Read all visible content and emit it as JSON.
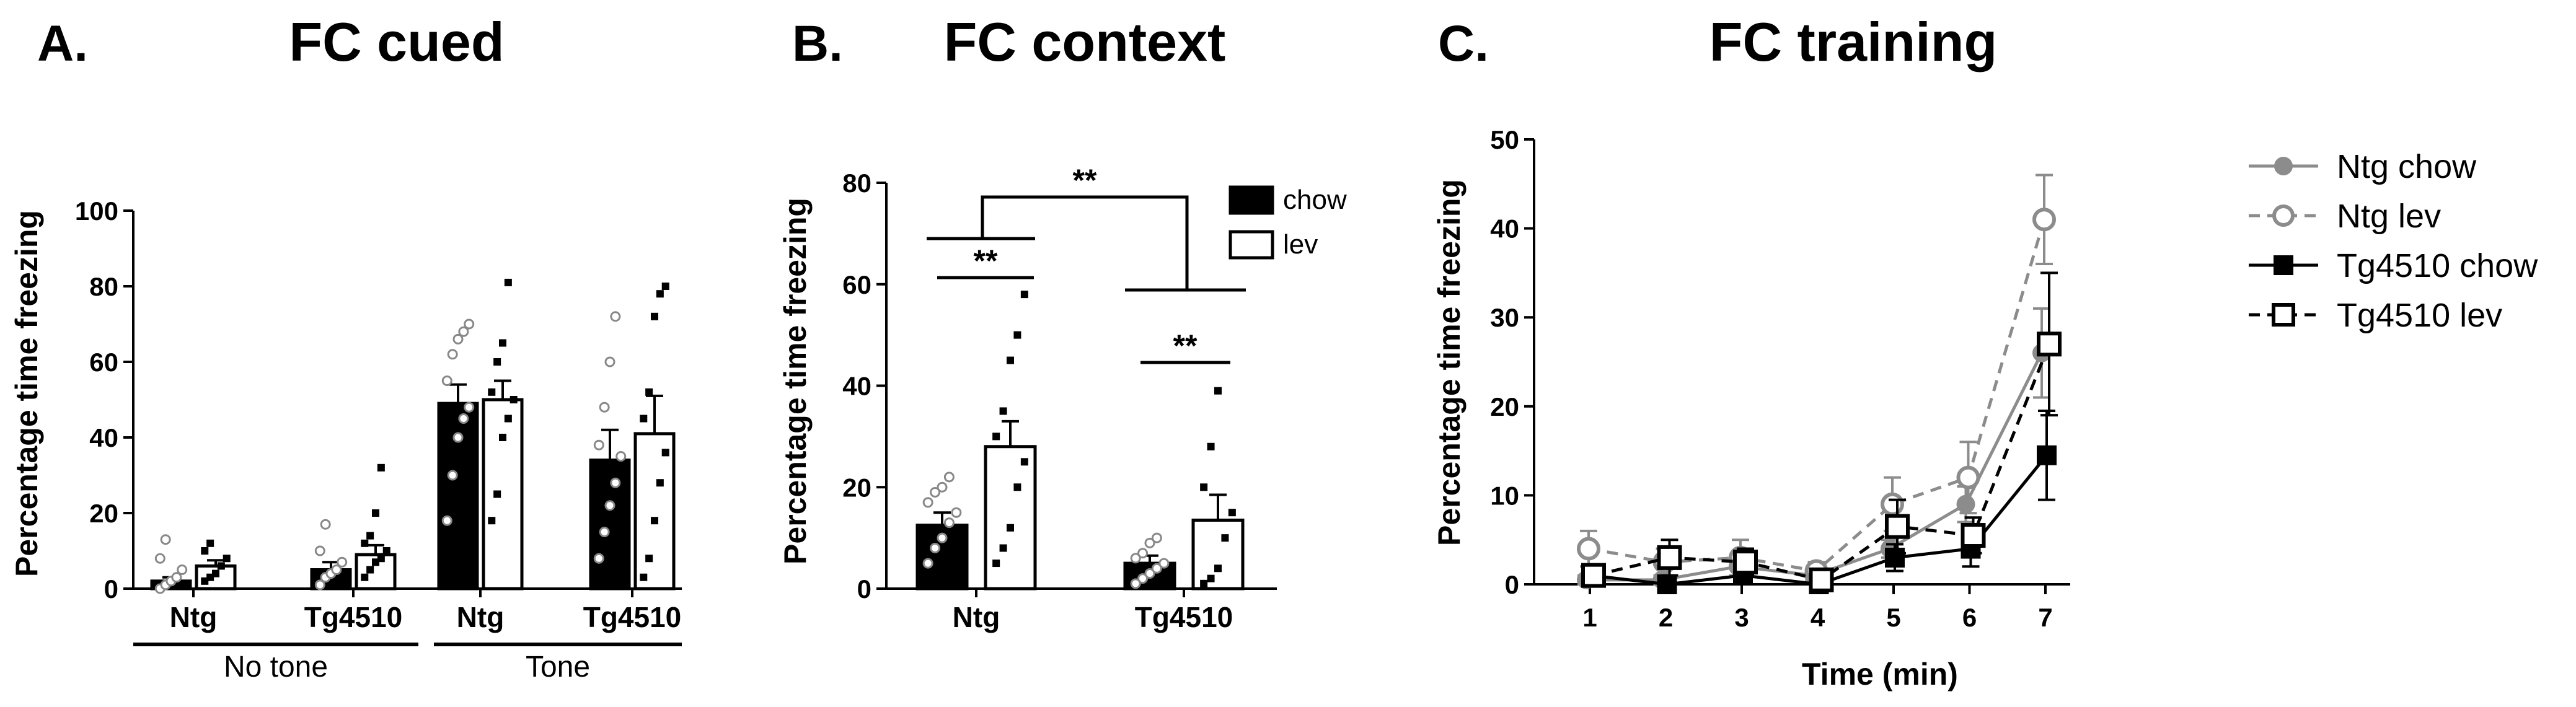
{
  "panels": {
    "a": {
      "letter": "A.",
      "title": "FC cued"
    },
    "b": {
      "letter": "B.",
      "title": "FC context"
    },
    "c": {
      "letter": "C.",
      "title": "FC training"
    }
  },
  "chart_data": [
    {
      "id": "a",
      "type": "bar",
      "title": "FC cued",
      "ylabel": "Percentage time freezing",
      "xlabel": "",
      "ylim": [
        0,
        100
      ],
      "yticks": [
        0,
        20,
        40,
        60,
        80,
        100
      ],
      "categories": [
        "Ntg",
        "Tg4510",
        "Ntg",
        "Tg4510"
      ],
      "groups": [
        {
          "label": "No tone",
          "categories": [
            0,
            1
          ]
        },
        {
          "label": "Tone",
          "categories": [
            2,
            3
          ]
        }
      ],
      "series": [
        {
          "id": "chow",
          "fill": "#000000",
          "values": [
            2,
            5,
            49,
            34
          ],
          "sem": [
            1,
            2,
            5,
            8
          ],
          "points": [
            [
              0,
              1,
              2,
              3,
              5,
              8,
              13
            ],
            [
              1,
              3,
              4,
              5,
              7,
              10,
              17
            ],
            [
              18,
              30,
              40,
              45,
              48,
              55,
              62,
              66,
              68,
              70
            ],
            [
              8,
              15,
              22,
              28,
              35,
              38,
              48,
              60,
              72
            ]
          ]
        },
        {
          "id": "lev",
          "fill": "#ffffff",
          "values": [
            6,
            9,
            50,
            41
          ],
          "sem": [
            1.5,
            2.5,
            5,
            10
          ],
          "points": [
            [
              2,
              3,
              4,
              6,
              8,
              10,
              12
            ],
            [
              3,
              5,
              7,
              8,
              10,
              12,
              14,
              20,
              32
            ],
            [
              18,
              25,
              40,
              45,
              50,
              52,
              60,
              65,
              81
            ],
            [
              3,
              8,
              18,
              28,
              36,
              45,
              52,
              72,
              78,
              80
            ]
          ]
        }
      ]
    },
    {
      "id": "b",
      "type": "bar",
      "title": "FC context",
      "ylabel": "Percentage time freezing",
      "xlabel": "",
      "ylim": [
        0,
        80
      ],
      "yticks": [
        0,
        20,
        40,
        60,
        80
      ],
      "categories": [
        "Ntg",
        "Tg4510"
      ],
      "legend": {
        "position": "top-right",
        "entries": [
          {
            "label": "chow",
            "fill": "#000000"
          },
          {
            "label": "lev",
            "fill": "#ffffff"
          }
        ]
      },
      "series": [
        {
          "id": "chow",
          "fill": "#000000",
          "values": [
            12.5,
            5
          ],
          "sem": [
            2.5,
            1.5
          ],
          "points": [
            [
              5,
              8,
              10,
              13,
              15,
              17,
              19,
              20,
              22
            ],
            [
              1,
              2,
              3,
              4,
              5,
              6,
              7,
              9,
              10
            ]
          ]
        },
        {
          "id": "lev",
          "fill": "#ffffff",
          "values": [
            28,
            13.5
          ],
          "sem": [
            5,
            5
          ],
          "points": [
            [
              5,
              8,
              12,
              20,
              25,
              30,
              35,
              45,
              50,
              58
            ],
            [
              1,
              2,
              4,
              10,
              15,
              20,
              28,
              39
            ]
          ]
        }
      ],
      "annotations": [
        {
          "label": "**",
          "compare": "Ntg chow vs Ntg lev"
        },
        {
          "label": "**",
          "compare": "Tg4510 chow vs Tg4510 lev"
        },
        {
          "label": "**",
          "compare": "Ntg vs Tg4510"
        }
      ]
    },
    {
      "id": "c",
      "type": "line",
      "title": "FC training",
      "xlabel": "Time (min)",
      "ylabel": "Percentage time freezing",
      "xlim": [
        1,
        7
      ],
      "ylim": [
        0,
        50
      ],
      "xticks": [
        1,
        2,
        3,
        4,
        5,
        6,
        7
      ],
      "yticks": [
        0,
        10,
        20,
        30,
        40,
        50
      ],
      "x": [
        1,
        2,
        3,
        4,
        5,
        6,
        7
      ],
      "legend": {
        "position": "right"
      },
      "series": [
        {
          "name": "Ntg chow",
          "color": "#8c8c8c",
          "dash": false,
          "marker": "circle",
          "filled": true,
          "values": [
            0.5,
            0.5,
            2,
            1,
            4,
            9,
            26
          ],
          "sem": [
            0.5,
            0.5,
            1,
            0.5,
            1,
            2,
            5
          ]
        },
        {
          "name": "Ntg lev",
          "color": "#8c8c8c",
          "dash": true,
          "marker": "circle",
          "filled": false,
          "values": [
            4,
            2.5,
            3,
            1.5,
            9,
            12,
            41
          ],
          "sem": [
            2,
            1.5,
            2,
            1,
            3,
            4,
            5
          ]
        },
        {
          "name": "Tg4510 chow",
          "color": "#000000",
          "dash": false,
          "marker": "square",
          "filled": true,
          "values": [
            1,
            0,
            1,
            0,
            3,
            4,
            14.5
          ],
          "sem": [
            0.5,
            0.5,
            0.5,
            0.5,
            1.5,
            2,
            5
          ]
        },
        {
          "name": "Tg4510 lev",
          "color": "#000000",
          "dash": true,
          "marker": "square",
          "filled": false,
          "values": [
            1,
            3,
            2.5,
            0.5,
            6.5,
            5.5,
            27
          ],
          "sem": [
            0.5,
            2,
            1.5,
            0.5,
            3,
            2,
            8
          ]
        }
      ]
    }
  ]
}
